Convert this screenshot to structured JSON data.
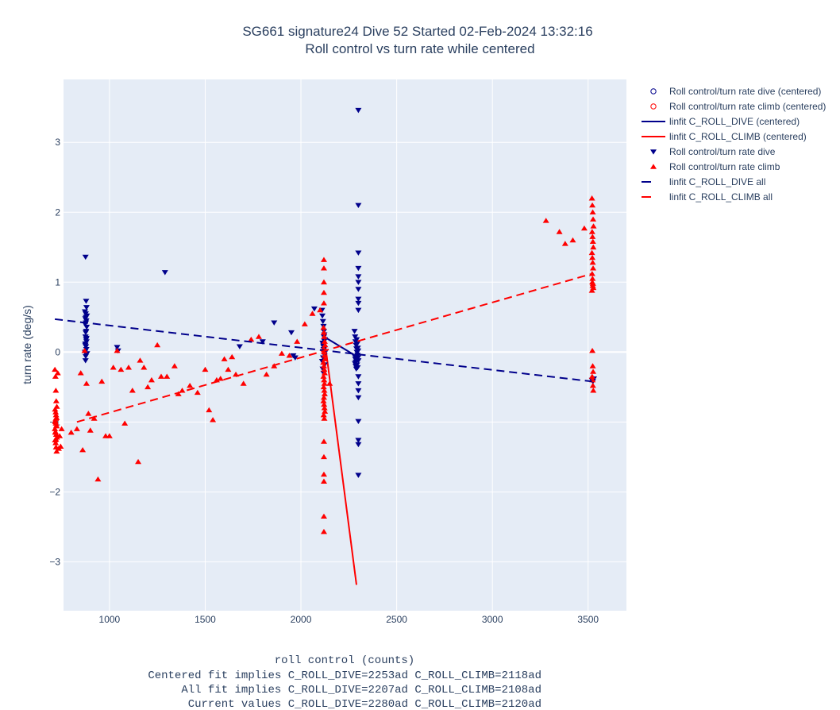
{
  "chart_data": {
    "type": "scatter",
    "title": "SG661 signature24 Dive 52 Started 02-Feb-2024 13:32:16",
    "subtitle": "Roll control vs turn rate while centered",
    "xlabel": "roll control (counts)",
    "ylabel": "turn rate (deg/s)",
    "xlim": [
      760,
      3700
    ],
    "ylim": [
      -3.7,
      3.9
    ],
    "xticks": [
      1000,
      1500,
      2000,
      2500,
      3000,
      3500
    ],
    "yticks": [
      -3,
      -2,
      -1,
      0,
      1,
      2,
      3
    ],
    "grid": true,
    "legend_position": "right",
    "notes": [
      "Centered fit implies C_ROLL_DIVE=2253ad C_ROLL_CLIMB=2118ad",
      "All fit implies C_ROLL_DIVE=2207ad C_ROLL_CLIMB=2108ad",
      "Current values C_ROLL_DIVE=2280ad C_ROLL_CLIMB=2120ad"
    ],
    "series": [
      {
        "name": "Roll control/turn rate dive (centered)",
        "kind": "marker",
        "marker": "circle-open",
        "color": "#00008b",
        "x": [],
        "y": []
      },
      {
        "name": "Roll control/turn rate climb (centered)",
        "kind": "marker",
        "marker": "circle-open",
        "color": "#ff0000",
        "x": [],
        "y": []
      },
      {
        "name": "linfit C_ROLL_DIVE (centered)",
        "kind": "line",
        "dash": "solid",
        "color": "#00008b",
        "x": [
          2120,
          2290
        ],
        "y": [
          0.22,
          -0.06
        ]
      },
      {
        "name": "linfit C_ROLL_CLIMB (centered)",
        "kind": "line",
        "dash": "solid",
        "color": "#ff0000",
        "x": [
          2120,
          2290
        ],
        "y": [
          0.25,
          -3.33
        ]
      },
      {
        "name": "Roll control/turn rate dive",
        "kind": "marker",
        "marker": "triangle-down",
        "color": "#00008b",
        "x": [
          875,
          878,
          880,
          872,
          876,
          882,
          874,
          879,
          877,
          873,
          881,
          876,
          875,
          878,
          880,
          874,
          877,
          879,
          872,
          883,
          876,
          875,
          878,
          880,
          874,
          877,
          1290,
          1040,
          1045,
          1680,
          1800,
          1860,
          1950,
          2070,
          1960,
          1970,
          2110,
          2112,
          2115,
          2118,
          2120,
          2122,
          2125,
          2113,
          2117,
          2119,
          2121,
          2123,
          2116,
          2111,
          2124,
          2114,
          2118,
          2120,
          2122,
          2117,
          2280,
          2283,
          2285,
          2288,
          2290,
          2292,
          2295,
          2298,
          2300,
          2282,
          2286,
          2289,
          2291,
          2294,
          2297,
          2299,
          2281,
          2284,
          2287,
          2293,
          2296,
          2300,
          2300,
          2300,
          2300,
          2300,
          2300,
          2300,
          2300,
          2300,
          2300,
          2300,
          2300,
          2300,
          2300,
          2300,
          2300,
          2300,
          2300,
          3520,
          3525,
          3530
        ],
        "y": [
          1.36,
          0.73,
          0.64,
          0.58,
          0.55,
          0.52,
          0.48,
          0.45,
          0.42,
          0.4,
          0.36,
          0.28,
          0.22,
          0.18,
          0.15,
          0.12,
          0.08,
          0.04,
          0.0,
          -0.02,
          -0.06,
          -0.12,
          0.3,
          0.2,
          0.1,
          0.5,
          1.14,
          0.07,
          0.02,
          0.08,
          0.15,
          0.42,
          0.28,
          0.62,
          -0.05,
          -0.08,
          0.6,
          0.52,
          0.44,
          0.37,
          0.3,
          0.25,
          0.18,
          0.13,
          0.08,
          0.04,
          0.0,
          -0.04,
          -0.08,
          -0.13,
          -0.18,
          -0.24,
          -0.3,
          0.22,
          0.16,
          0.1,
          0.3,
          0.22,
          0.15,
          0.1,
          0.05,
          0.0,
          -0.04,
          -0.08,
          -0.12,
          -0.16,
          -0.2,
          -0.24,
          0.18,
          0.12,
          0.06,
          0.02,
          -0.06,
          -0.1,
          -0.14,
          -0.18,
          -0.22,
          3.46,
          2.1,
          1.42,
          1.2,
          1.08,
          1.0,
          0.9,
          0.76,
          0.7,
          0.6,
          -0.35,
          -0.45,
          -0.55,
          -0.65,
          -0.99,
          -1.26,
          -1.32,
          -1.76,
          -0.4,
          -0.42,
          -0.38
        ]
      },
      {
        "name": "Roll control/turn rate climb",
        "kind": "marker",
        "marker": "triangle-up",
        "color": "#ff0000",
        "x": [
          715,
          718,
          720,
          722,
          725,
          716,
          719,
          721,
          724,
          717,
          720,
          723,
          715,
          718,
          722,
          725,
          716,
          719,
          721,
          724,
          717,
          720,
          723,
          718,
          721,
          730,
          735,
          740,
          745,
          750,
          800,
          830,
          850,
          860,
          870,
          880,
          890,
          900,
          920,
          940,
          960,
          980,
          1000,
          1020,
          1040,
          1060,
          1080,
          1100,
          1120,
          1150,
          1160,
          1180,
          1200,
          1220,
          1250,
          1270,
          1300,
          1340,
          1360,
          1380,
          1420,
          1460,
          1500,
          1520,
          1540,
          1560,
          1580,
          1600,
          1620,
          1640,
          1660,
          1700,
          1740,
          1780,
          1820,
          1860,
          1900,
          1940,
          1980,
          2020,
          2060,
          2100,
          2118,
          2120,
          2122,
          2124,
          2126,
          2119,
          2121,
          2123,
          2125,
          2117,
          2120,
          2122,
          2124,
          2118,
          2121,
          2123,
          2119,
          2122,
          2124,
          2120,
          2118,
          2121,
          2123,
          2125,
          2119,
          2122,
          2120,
          2120,
          2120,
          2120,
          2120,
          2120,
          2120,
          2120,
          2120,
          2120,
          2120,
          2150,
          3280,
          3350,
          3380,
          3420,
          3480,
          3520,
          3522,
          3524,
          3526,
          3528,
          3521,
          3523,
          3525,
          3527,
          3520,
          3522,
          3524,
          3526,
          3521,
          3523,
          3525,
          3527,
          3520,
          3522,
          3524,
          3522,
          3524,
          3526,
          3521,
          3523,
          3525,
          3527
        ],
        "y": [
          -0.25,
          -0.35,
          -0.55,
          -0.7,
          -0.78,
          -0.82,
          -0.86,
          -0.9,
          -0.94,
          -0.98,
          -1.02,
          -1.06,
          -1.1,
          -1.14,
          -1.18,
          -1.22,
          -1.26,
          -1.3,
          -1.36,
          -1.42,
          -1.0,
          -0.95,
          -1.05,
          -1.15,
          -1.25,
          -0.3,
          -1.38,
          -1.2,
          -1.35,
          -1.1,
          -1.15,
          -1.1,
          -0.3,
          -1.4,
          0.02,
          -0.45,
          -0.88,
          -1.12,
          -0.95,
          -1.82,
          -0.42,
          -1.2,
          -1.2,
          -0.22,
          0.02,
          -0.25,
          -1.02,
          -0.22,
          -0.55,
          -1.57,
          -0.12,
          -0.22,
          -0.5,
          -0.4,
          0.1,
          -0.35,
          -0.35,
          -0.2,
          -0.6,
          -0.55,
          -0.48,
          -0.58,
          -0.25,
          -0.83,
          -0.97,
          -0.4,
          -0.38,
          -0.1,
          -0.25,
          -0.07,
          -0.32,
          -0.45,
          0.18,
          0.22,
          -0.32,
          -0.2,
          -0.02,
          -0.05,
          0.15,
          0.4,
          0.55,
          0.6,
          0.35,
          0.28,
          0.22,
          0.15,
          0.1,
          0.05,
          0.0,
          -0.05,
          -0.1,
          -0.15,
          -0.2,
          -0.25,
          -0.3,
          -0.35,
          -0.4,
          -0.45,
          -0.5,
          -0.55,
          -0.6,
          -0.65,
          -0.7,
          -0.75,
          -0.8,
          -0.85,
          -0.9,
          -0.95,
          1.32,
          1.2,
          1.0,
          0.85,
          0.7,
          -1.28,
          -1.5,
          -1.85,
          -2.35,
          -2.57,
          -1.75,
          -0.45,
          1.88,
          1.72,
          1.55,
          1.6,
          1.77,
          2.2,
          2.1,
          2.0,
          1.9,
          1.8,
          1.72,
          1.65,
          1.58,
          1.5,
          1.42,
          1.35,
          1.28,
          1.2,
          1.12,
          1.05,
          0.98,
          0.92,
          0.88,
          1.0,
          0.95,
          0.02,
          -0.2,
          -0.28,
          -0.35,
          -0.4,
          -0.48,
          -0.55
        ]
      },
      {
        "name": "linfit C_ROLL_DIVE all",
        "kind": "line",
        "dash": "dash",
        "color": "#00008b",
        "x": [
          715,
          3520
        ],
        "y": [
          0.47,
          -0.42
        ]
      },
      {
        "name": "linfit C_ROLL_CLIMB all",
        "kind": "line",
        "dash": "dash",
        "color": "#ff0000",
        "x": [
          830,
          3520
        ],
        "y": [
          -1.0,
          1.12
        ]
      }
    ]
  }
}
